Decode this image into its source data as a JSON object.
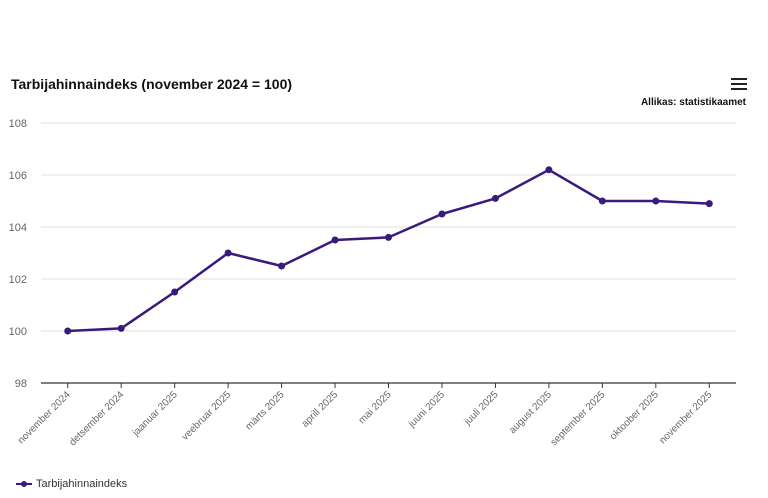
{
  "header": {
    "title": "Tarbijahinnaindeks (november 2024 = 100)",
    "source": "Allikas: statistikaamet",
    "menu_icon": "hamburger-menu-icon"
  },
  "legend": {
    "label": "Tarbijahinnaindeks"
  },
  "colors": {
    "series": "#3a1a7a",
    "grid": "#e0e0e0",
    "axis": "#333333"
  },
  "chart_data": {
    "type": "line",
    "title": "Tarbijahinnaindeks (november 2024 = 100)",
    "xlabel": "",
    "ylabel": "",
    "categories": [
      "november 2024",
      "detsember 2024",
      "jaanuar 2025",
      "veebruar 2025",
      "märts 2025",
      "aprill 2025",
      "mai 2025",
      "juuni 2025",
      "juuli 2025",
      "august 2025",
      "september 2025",
      "oktoober 2025",
      "november 2025"
    ],
    "series": [
      {
        "name": "Tarbijahinnaindeks",
        "values": [
          100.0,
          100.1,
          101.5,
          103.0,
          102.5,
          103.5,
          103.6,
          104.5,
          105.1,
          106.2,
          105.0,
          105.0,
          104.9
        ]
      }
    ],
    "ylim": [
      98,
      108
    ],
    "yticks": [
      98,
      100,
      102,
      104,
      106,
      108
    ],
    "grid": true,
    "legend_position": "bottom-left"
  }
}
